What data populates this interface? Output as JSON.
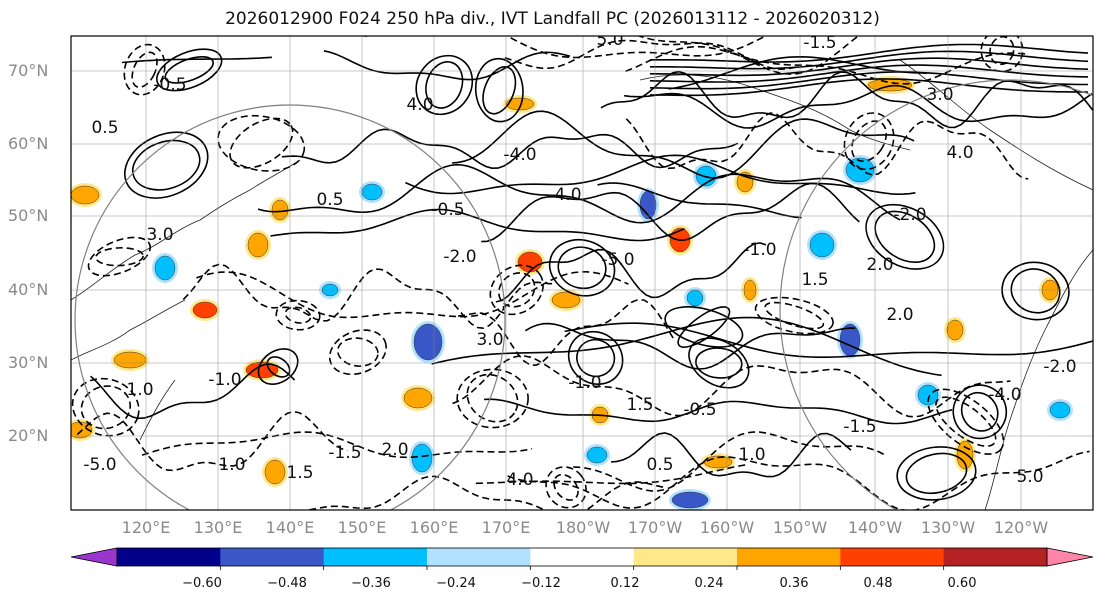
{
  "title": "2026012900 F024 250 hPa div., IVT Landfall PC (2026013112 - 2026020312)",
  "lat_labels": [
    "70°N",
    "60°N",
    "50°N",
    "40°N",
    "30°N",
    "20°N"
  ],
  "lon_labels": [
    "120°E",
    "130°E",
    "140°E",
    "150°E",
    "160°E",
    "170°E",
    "180°W",
    "170°W",
    "160°W",
    "150°W",
    "140°W",
    "130°W",
    "120°W"
  ],
  "contour_labels": [
    "0.5",
    "-0.5",
    "1.0",
    "-1.0",
    "1.5",
    "-1.5",
    "2.0",
    "-2.0",
    "3.0",
    "4.0",
    "-4.0",
    "5.0",
    "-5.0"
  ],
  "colorbar": {
    "colors": [
      "#9a35d0",
      "#00008b",
      "#3a57c8",
      "#00bfff",
      "#b0e2ff",
      "#ffffff",
      "#ffe88a",
      "#ffa500",
      "#ff4000",
      "#b22222",
      "#ff85a8"
    ],
    "labels": [
      "−0.60",
      "−0.48",
      "−0.36",
      "−0.24",
      "−0.12",
      "0.12",
      "0.24",
      "0.36",
      "0.48",
      "0.60"
    ]
  }
}
